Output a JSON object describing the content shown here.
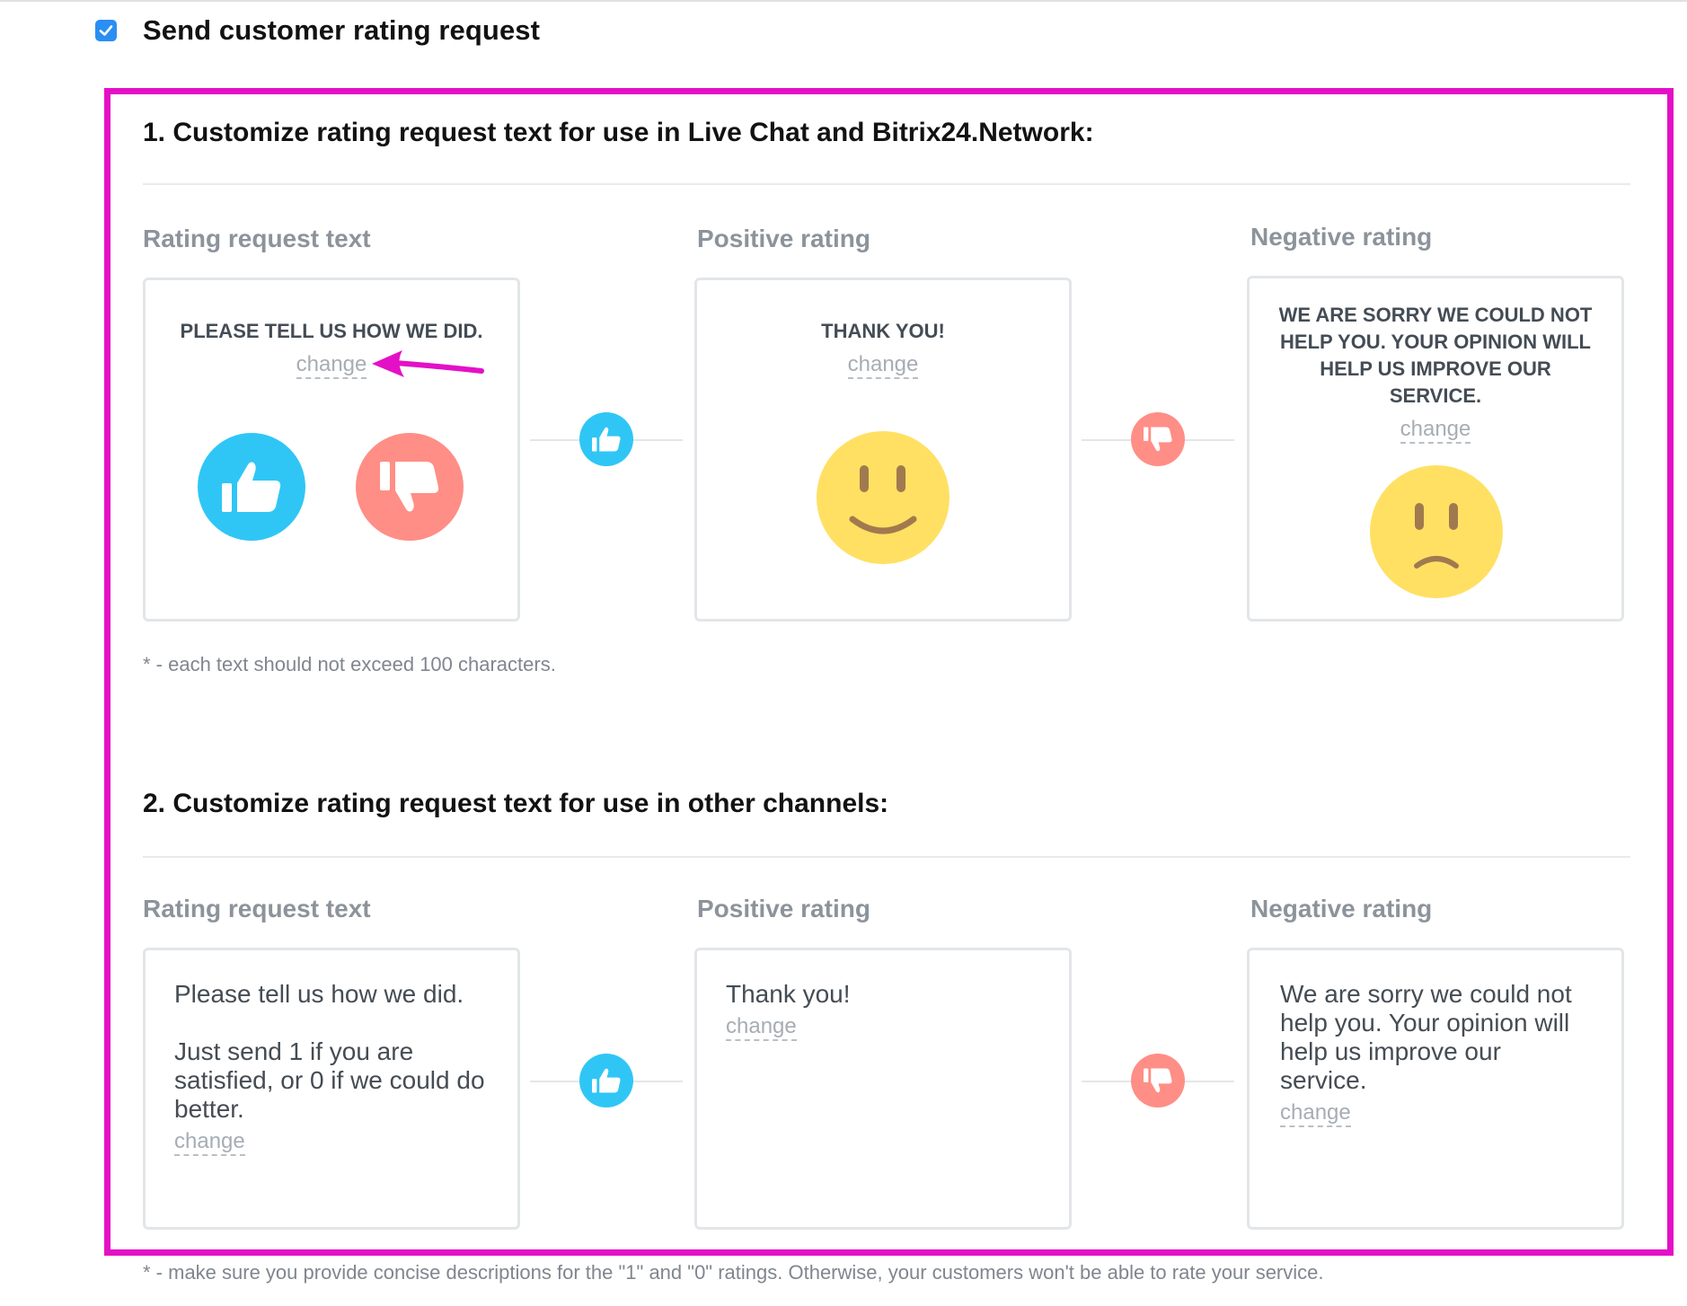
{
  "header": {
    "send_label": "Send customer rating request",
    "checkbox_checked": true
  },
  "section1": {
    "title": "1. Customize rating request text for use in Live Chat and Bitrix24.Network:",
    "labels": {
      "request": "Rating request text",
      "positive": "Positive rating",
      "negative": "Negative rating"
    },
    "request_text": "PLEASE TELL US HOW WE DID.",
    "positive_text": "THANK YOU!",
    "negative_text": "WE ARE SORRY WE COULD NOT HELP YOU. YOUR OPINION WILL HELP US IMPROVE OUR SERVICE.",
    "change_label": "change",
    "note": "* - each text should not exceed 100 characters."
  },
  "section2": {
    "title": "2. Customize rating request text for use in other channels:",
    "labels": {
      "request": "Rating request text",
      "positive": "Positive rating",
      "negative": "Negative rating"
    },
    "request_text": "Please tell us how we did.\n\nJust send 1 if you are satisfied, or 0 if we could do better.",
    "positive_text": "Thank you!",
    "negative_text": "We are sorry we could not help you. Your opinion will help us improve our service.",
    "change_label": "change"
  },
  "footer_note": "* - make sure you provide concise descriptions for the \"1\" and \"0\" ratings. Otherwise, your customers won't be able to rate your service.",
  "icons": {
    "like": "thumbs-up-icon",
    "dislike": "thumbs-down-icon",
    "happy": "smiley-face",
    "sad": "sad-face",
    "annotation": "arrow-annotation"
  },
  "colors": {
    "accent_blue": "#2fc6f6",
    "accent_salmon": "#ff8e86",
    "face_yellow": "#ffe063",
    "highlight_frame": "#e410c7",
    "checkbox": "#2a8ef2"
  }
}
